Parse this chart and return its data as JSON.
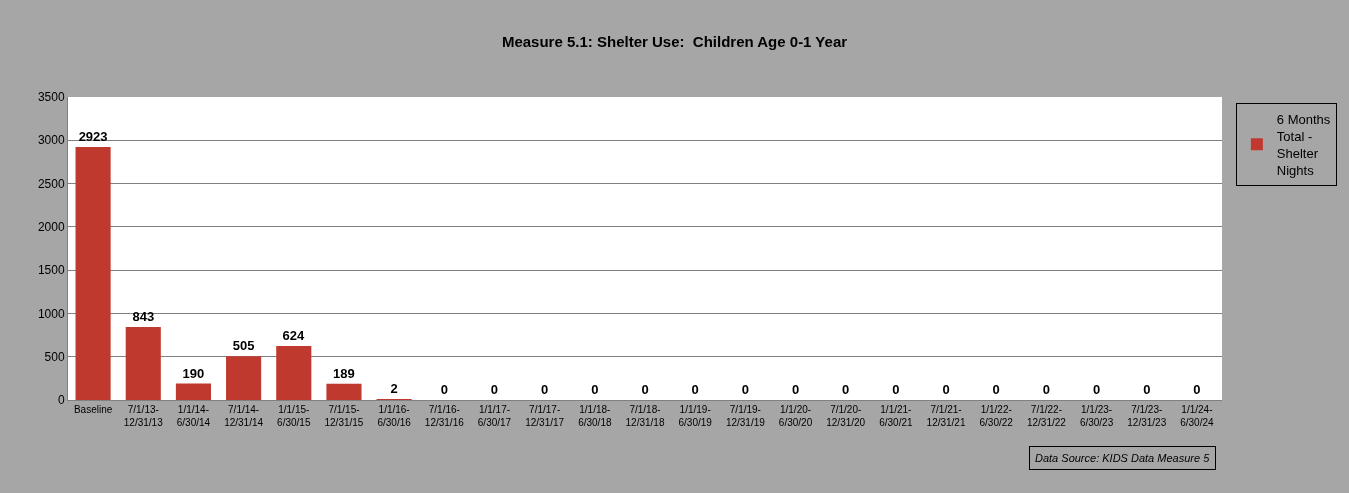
{
  "chart_data": {
    "type": "bar",
    "title": "Measure 5.1: Shelter Use:  Children Age 0-1 Year",
    "categories": [
      "Baseline",
      "7/1/13-\n12/31/13",
      "1/1/14-\n6/30/14",
      "7/1/14-\n12/31/14",
      "1/1/15-\n6/30/15",
      "7/1/15-\n12/31/15",
      "1/1/16-\n6/30/16",
      "7/1/16-\n12/31/16",
      "1/1/17-\n6/30/17",
      "7/1/17-\n12/31/17",
      "1/1/18-\n6/30/18",
      "7/1/18-\n12/31/18",
      "1/1/19-\n6/30/19",
      "7/1/19-\n12/31/19",
      "1/1/20-\n6/30/20",
      "7/1/20-\n12/31/20",
      "1/1/21-\n6/30/21",
      "7/1/21-\n12/31/21",
      "1/1/22-\n6/30/22",
      "7/1/22-\n12/31/22",
      "1/1/23-\n6/30/23",
      "7/1/23-\n12/31/23",
      "1/1/24-\n6/30/24"
    ],
    "series": [
      {
        "name": "6 Months\nTotal -\nShelter\nNights",
        "color": "#c0392f",
        "values": [
          2923,
          843,
          190,
          505,
          624,
          189,
          2,
          0,
          0,
          0,
          0,
          0,
          0,
          0,
          0,
          0,
          0,
          0,
          0,
          0,
          0,
          0,
          0
        ]
      }
    ],
    "ylim": [
      0,
      3500
    ],
    "yticks": [
      0,
      500,
      1000,
      1500,
      2000,
      2500,
      3000,
      3500
    ],
    "grid": "y",
    "legend": "right",
    "data_labels": true,
    "annotations": [
      "Data Source: KIDS Data Measure 5"
    ]
  }
}
